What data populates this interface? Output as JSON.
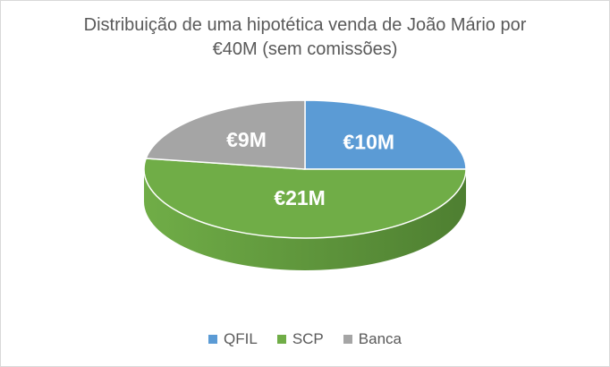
{
  "chart_data": {
    "type": "pie",
    "title_lines": [
      "Distribuição de uma hipotética venda de João Mário por",
      "€40M (sem comissões)"
    ],
    "categories": [
      "QFIL",
      "SCP",
      "Banca"
    ],
    "values": [
      10,
      21,
      9
    ],
    "data_labels": [
      "€10M",
      "€21M",
      "€9M"
    ],
    "colors": [
      "#5b9bd5",
      "#70ad47",
      "#a5a5a5"
    ],
    "side_colors": [
      "#41719c",
      "#4e7f31",
      "#7b7b7b"
    ],
    "style": "3d-pie",
    "legend": {
      "position": "bottom",
      "entries": [
        "QFIL",
        "SCP",
        "Banca"
      ]
    }
  }
}
